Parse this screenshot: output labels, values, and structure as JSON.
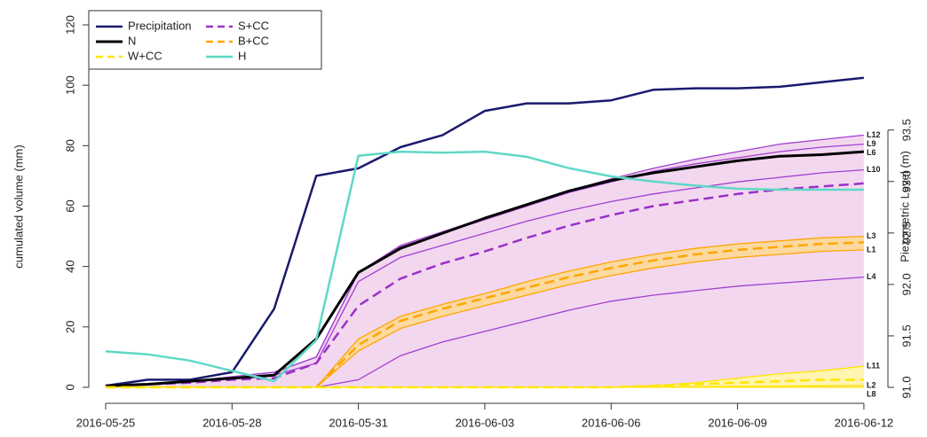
{
  "chart_data": {
    "type": "line",
    "x": [
      "2016-05-25",
      "2016-05-26",
      "2016-05-27",
      "2016-05-28",
      "2016-05-29",
      "2016-05-30",
      "2016-05-31",
      "2016-06-01",
      "2016-06-02",
      "2016-06-03",
      "2016-06-04",
      "2016-06-05",
      "2016-06-06",
      "2016-06-07",
      "2016-06-08",
      "2016-06-09",
      "2016-06-10",
      "2016-06-11",
      "2016-06-12"
    ],
    "xticks": [
      "2016-05-25",
      "2016-05-28",
      "2016-05-31",
      "2016-06-03",
      "2016-06-06",
      "2016-06-09",
      "2016-06-12"
    ],
    "ylabel": "cumulated volume (mm)",
    "y2label": "Piezometric Level (m)",
    "ylim": [
      -5.3,
      124.7
    ],
    "yticks": [
      0,
      20,
      40,
      60,
      80,
      100,
      120
    ],
    "y2lim": [
      90.845,
      94.66
    ],
    "y2ticks": [
      {
        "value": 91,
        "label": "91.0"
      },
      91.5,
      {
        "value": 92,
        "label": "92.0"
      },
      92.5,
      {
        "value": 93,
        "label": "93.0"
      },
      93.5
    ],
    "y2color": "#5fd8c6",
    "legend": "top-left",
    "series": [
      {
        "name": "Precipitation",
        "color": "#1a1a6e",
        "width": 2.5,
        "values": [
          0.5,
          2.5,
          2.5,
          5,
          26,
          70,
          72.5,
          79.5,
          83.5,
          91.5,
          94,
          94,
          95,
          98.5,
          99,
          99,
          99.5,
          101,
          102.5
        ]
      },
      {
        "name": "S+CC",
        "color": "#9b30c8",
        "dash": true,
        "width": 2.5,
        "values": [
          0.5,
          1,
          1.5,
          2.5,
          3,
          8,
          27,
          36,
          41,
          45,
          49.5,
          53.5,
          57,
          60,
          62,
          64,
          65.5,
          66.5,
          67.5
        ]
      },
      {
        "name": "N",
        "color": "#000000",
        "width": 3,
        "end_label": "L6",
        "values": [
          0.5,
          1,
          2,
          3,
          4,
          16,
          38,
          46,
          51,
          56,
          60.5,
          65,
          68.5,
          71,
          73,
          75,
          76.5,
          77,
          78
        ]
      },
      {
        "name": "B+CC",
        "color": "#ffa500",
        "dash": true,
        "width": 2.5,
        "values": [
          0,
          0,
          0,
          0,
          0,
          0,
          14,
          22,
          26,
          29.5,
          33,
          36.5,
          39.5,
          42,
          44,
          45.5,
          46.5,
          47.5,
          48
        ]
      },
      {
        "name": "W+CC",
        "color": "#ffe600",
        "dash": true,
        "width": 2.5,
        "values": [
          0,
          0,
          0,
          0,
          0,
          0,
          0,
          0,
          0,
          0,
          0,
          0,
          0,
          0.5,
          1,
          1.5,
          2,
          2.5,
          2.5
        ]
      },
      {
        "name": "H",
        "color": "#5fd8c6",
        "width": 2.5,
        "axis": "y2",
        "values": [
          91.35,
          91.32,
          91.26,
          91.16,
          91.06,
          91.46,
          93.25,
          93.29,
          93.28,
          93.29,
          93.24,
          93.13,
          93.05,
          93.0,
          92.96,
          92.93,
          92.92,
          92.92,
          92.92
        ]
      }
    ],
    "scenario_lines": [
      {
        "name": "L12",
        "color": "#a040d0",
        "values": [
          0.5,
          1,
          2,
          3.5,
          5,
          10,
          38,
          47,
          51.5,
          56,
          60.5,
          65,
          69,
          72.5,
          75.5,
          78,
          80.5,
          82,
          83.5
        ]
      },
      {
        "name": "L9",
        "color": "#a040d0",
        "values": [
          0.5,
          1,
          2,
          3.5,
          5,
          10,
          38,
          46.5,
          51,
          55.5,
          60,
          64.5,
          68,
          71.5,
          74,
          76,
          78,
          79.5,
          80.5
        ]
      },
      {
        "name": "L10",
        "color": "#a040d0",
        "values": [
          0.5,
          1,
          2,
          3,
          4,
          8,
          35,
          43,
          47,
          51,
          55,
          58.5,
          61.5,
          64,
          66,
          68,
          69.5,
          71,
          72
        ]
      },
      {
        "name": "L4",
        "color": "#a040d0",
        "values": [
          0,
          0,
          0,
          0,
          0,
          0,
          2.5,
          10.5,
          15,
          18.5,
          22,
          25.5,
          28.5,
          30.5,
          32,
          33.5,
          34.5,
          35.5,
          36.5
        ]
      },
      {
        "name": "L3",
        "color": "#ffa500",
        "values": [
          0,
          0,
          0,
          0,
          0,
          0,
          16,
          23.5,
          27.5,
          31,
          35,
          38.5,
          41.5,
          44,
          46,
          47.5,
          48.5,
          49.5,
          50
        ]
      },
      {
        "name": "L1",
        "color": "#ffa500",
        "values": [
          0,
          0,
          0,
          0,
          0,
          0,
          12,
          19.5,
          23.5,
          27,
          30.5,
          34,
          37,
          39.5,
          41.5,
          43,
          44,
          45,
          45.5
        ]
      },
      {
        "name": "L11",
        "color": "#ffe600",
        "values": [
          0,
          0,
          0,
          0,
          0,
          0,
          0,
          0,
          0,
          0,
          0,
          0,
          0,
          0.5,
          1.5,
          3,
          4.5,
          5.5,
          7
        ]
      },
      {
        "name": "L2",
        "color": "#ffe600",
        "values": [
          0,
          0,
          0,
          0,
          0,
          0,
          0,
          0,
          0,
          0,
          0,
          0,
          0,
          0.1,
          0.2,
          0.3,
          0.4,
          0.5,
          0.6
        ]
      },
      {
        "name": "L8",
        "color": "#ffe600",
        "values": [
          0,
          0,
          0,
          0,
          0,
          0,
          0,
          0,
          0,
          0,
          0,
          0,
          0,
          0,
          0,
          0,
          0,
          0,
          0
        ]
      }
    ],
    "bands": [
      {
        "between": [
          "L8",
          "L12"
        ],
        "color": "#f3d7ef"
      },
      {
        "between": [
          "L1",
          "L3"
        ],
        "color": "#fbd9a0"
      },
      {
        "between": [
          "L2",
          "L11"
        ],
        "color": "#fff4b0"
      }
    ]
  }
}
